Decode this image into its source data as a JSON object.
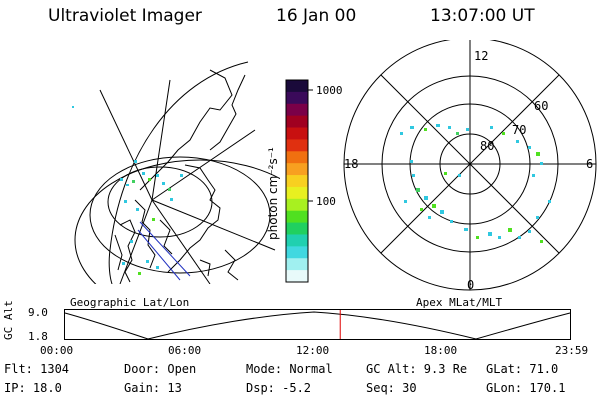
{
  "header": {
    "title": "Ultraviolet Imager",
    "date": "16 Jan 00",
    "time": "13:07:00 UT"
  },
  "left_panel": {
    "label": "Geographic Lat/Lon"
  },
  "right_panel": {
    "label": "Apex MLat/MLT",
    "mlt_labels": {
      "top": "12",
      "left": "18",
      "right": "6",
      "bottom": "0"
    },
    "lat_labels": [
      "60",
      "70",
      "80"
    ]
  },
  "colorbar": {
    "unit_label": "photon cm⁻²s⁻¹",
    "ticks": [
      "1000",
      "100"
    ],
    "colors": [
      "#1a0a3a",
      "#3a0a5a",
      "#7a0048",
      "#a00020",
      "#c81010",
      "#e03010",
      "#f07010",
      "#f8a020",
      "#f8d020",
      "#e8f020",
      "#a8f020",
      "#50e020",
      "#20d060",
      "#20d0b0",
      "#40d8e0",
      "#a0f0f0",
      "#e8fafa"
    ]
  },
  "timeline": {
    "axis_label": "GC Alt",
    "y_ticks": [
      "9.0",
      "1.8"
    ],
    "x_ticks": [
      "00:00",
      "06:00",
      "12:00",
      "18:00",
      "23:59"
    ],
    "current_time_fraction": 0.545,
    "marker_color": "#e00000"
  },
  "info": {
    "flt": "Flt: 1304",
    "door": "Door: Open",
    "mode": "Mode: Normal",
    "gcalt": "GC Alt: 9.3 Re",
    "glat": "GLat:  71.0",
    "ip": "IP: 18.0",
    "gain": "Gain: 13",
    "dsp": "Dsp:   -5.2",
    "seq": "Seq: 30",
    "glon": "GLon: 170.1"
  }
}
